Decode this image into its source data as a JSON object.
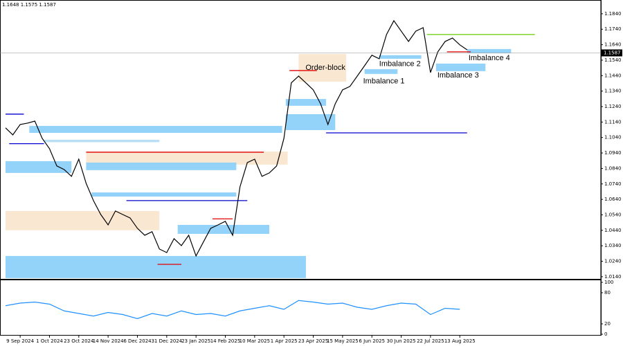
{
  "chart_data": {
    "type": "line",
    "header": "1.1648 1.1575 1.1587",
    "x": [
      0,
      4,
      8,
      12,
      16,
      20,
      24,
      28,
      32,
      36,
      40,
      44,
      48,
      52,
      56,
      60,
      64,
      68,
      72,
      76,
      80,
      84,
      88,
      92,
      96,
      100,
      104,
      108,
      112,
      116,
      120,
      124,
      128,
      132,
      136,
      140,
      144,
      148,
      152,
      156,
      160,
      164,
      168,
      172,
      176,
      180,
      184,
      188,
      192,
      196,
      200,
      204,
      208,
      212,
      216,
      220,
      224,
      228,
      232,
      236,
      240,
      244,
      248,
      252
    ],
    "series": [
      {
        "color": "#000000",
        "values": [
          1.1102,
          1.1057,
          1.1124,
          1.1133,
          1.1146,
          1.1035,
          1.0968,
          1.0856,
          1.0833,
          1.0789,
          1.09,
          1.0744,
          1.0632,
          1.0542,
          1.0475,
          1.0565,
          1.0542,
          1.052,
          1.0453,
          1.0408,
          1.0431,
          1.0319,
          1.0296,
          1.0386,
          1.0341,
          1.0408,
          1.0274,
          1.0364,
          1.0453,
          1.0475,
          1.0498,
          1.0408,
          1.0721,
          1.0878,
          1.09,
          1.0789,
          1.0811,
          1.0856,
          1.1035,
          1.1393,
          1.1437,
          1.1393,
          1.1348,
          1.1258,
          1.1124,
          1.1258,
          1.1348,
          1.137,
          1.1437,
          1.1504,
          1.1572,
          1.1549,
          1.1706,
          1.1795,
          1.1728,
          1.1661,
          1.1728,
          1.175,
          1.146,
          1.1594,
          1.1661,
          1.1683,
          1.1639,
          1.1607
        ]
      }
    ],
    "xlim": [
      -1.5,
      325
    ],
    "xticks": [
      {
        "value": 8,
        "label": "9 Sep 2024"
      },
      {
        "value": 24,
        "label": "1 Oct 2024"
      },
      {
        "value": 40,
        "label": "23 Oct 2024"
      },
      {
        "value": 56,
        "label": "14 Nov 2024"
      },
      {
        "value": 72,
        "label": "6 Dec 2024"
      },
      {
        "value": 88,
        "label": "31 Dec 2024"
      },
      {
        "value": 104,
        "label": "23 Jan 2025"
      },
      {
        "value": 120,
        "label": "14 Feb 2025"
      },
      {
        "value": 136,
        "label": "10 Mar 2025"
      },
      {
        "value": 152,
        "label": "1 Apr 2025"
      },
      {
        "value": 168,
        "label": "23 Apr 2025"
      },
      {
        "value": 184,
        "label": "15 May 2025"
      },
      {
        "value": 200,
        "label": "6 Jun 2025"
      },
      {
        "value": 216,
        "label": "30 Jun 2025"
      },
      {
        "value": 232,
        "label": "22 Jul 2025"
      },
      {
        "value": 248,
        "label": "13 Aug 2025"
      }
    ],
    "ylim": [
      1.0126,
      1.1929
    ],
    "yticks": [
      {
        "value": 1.184,
        "label": "1.1840"
      },
      {
        "value": 1.174,
        "label": "1.1740"
      },
      {
        "value": 1.164,
        "label": "1.1640"
      },
      {
        "value": 1.154,
        "label": "1.1540"
      },
      {
        "value": 1.144,
        "label": "1.1440"
      },
      {
        "value": 1.134,
        "label": "1.1340"
      },
      {
        "value": 1.124,
        "label": "1.1240"
      },
      {
        "value": 1.114,
        "label": "1.1140"
      },
      {
        "value": 1.104,
        "label": "1.1040"
      },
      {
        "value": 1.094,
        "label": "1.0940"
      },
      {
        "value": 1.084,
        "label": "1.0840"
      },
      {
        "value": 1.074,
        "label": "1.0740"
      },
      {
        "value": 1.064,
        "label": "1.0640"
      },
      {
        "value": 1.054,
        "label": "1.0540"
      },
      {
        "value": 1.044,
        "label": "1.0440"
      },
      {
        "value": 1.034,
        "label": "1.0340"
      },
      {
        "value": 1.024,
        "label": "1.0240"
      },
      {
        "value": 1.014,
        "label": "1.0140"
      }
    ],
    "current_price": {
      "value": 1.1587,
      "label": "1.1587"
    },
    "zones": [
      {
        "x": [
          0,
          164
        ],
        "y": [
          1.0131,
          1.0274
        ],
        "color": "#87cefa"
      },
      {
        "x": [
          0,
          84
        ],
        "y": [
          1.044,
          1.0565
        ],
        "color": "#f8e4cc"
      },
      {
        "x": [
          44,
          154
        ],
        "y": [
          1.0865,
          1.0949
        ],
        "color": "#f8e4cc"
      },
      {
        "x": [
          0,
          36
        ],
        "y": [
          1.0811,
          1.0887
        ],
        "color": "#87cefa"
      },
      {
        "x": [
          44,
          126
        ],
        "y": [
          1.0829,
          1.0878
        ],
        "color": "#87cefa"
      },
      {
        "x": [
          13,
          151
        ],
        "y": [
          1.107,
          1.1115
        ],
        "color": "#87cefa"
      },
      {
        "x": [
          21,
          84
        ],
        "y": [
          1.101,
          1.1025
        ],
        "color": "#b0dcf5"
      },
      {
        "x": [
          47,
          126
        ],
        "y": [
          1.0658,
          1.0685
        ],
        "color": "#87cefa"
      },
      {
        "x": [
          94,
          144
        ],
        "y": [
          1.0417,
          1.0475
        ],
        "color": "#87cefa"
      },
      {
        "x": [
          153,
          180
        ],
        "y": [
          1.1088,
          1.1191
        ],
        "color": "#87cefa"
      },
      {
        "x": [
          153,
          175
        ],
        "y": [
          1.1245,
          1.1289
        ],
        "color": "#87cefa"
      },
      {
        "x": [
          160,
          186
        ],
        "y": [
          1.1401,
          1.158
        ],
        "color": "#f8e4cc",
        "label": "Order-block"
      },
      {
        "x": [
          204,
          227
        ],
        "y": [
          1.1549,
          1.1572
        ],
        "color": "#87cefa",
        "label": "Imbalance 2"
      },
      {
        "x": [
          196,
          214
        ],
        "y": [
          1.1451,
          1.1482
        ],
        "color": "#87cefa",
        "label": "Imbalance 1"
      },
      {
        "x": [
          235,
          262
        ],
        "y": [
          1.1469,
          1.1518
        ],
        "color": "#87cefa",
        "label": "Imbalance 3"
      },
      {
        "x": [
          252,
          276
        ],
        "y": [
          1.1585,
          1.1612
        ],
        "color": "#87cefa",
        "label": "Imbalance 4"
      }
    ],
    "levels": [
      {
        "x": [
          0,
          10
        ],
        "y": 1.1191,
        "color": "#0000cd"
      },
      {
        "x": [
          2,
          21
        ],
        "y": 1.1,
        "color": "#0000cd"
      },
      {
        "x": [
          175,
          252
        ],
        "y": 1.107,
        "color": "#0000cd"
      },
      {
        "x": [
          155,
          170
        ],
        "y": 1.1473,
        "color": "#e00000"
      },
      {
        "x": [
          66,
          132
        ],
        "y": 1.0632,
        "color": "#0000cd"
      },
      {
        "x": [
          44,
          141
        ],
        "y": 1.0945,
        "color": "#e00000"
      },
      {
        "x": [
          83,
          96
        ],
        "y": 1.022,
        "color": "#e00000"
      },
      {
        "x": [
          113,
          124
        ],
        "y": 1.0514,
        "color": "#e00000"
      },
      {
        "x": [
          230,
          289
        ],
        "y": 1.1706,
        "color": "#66cc00"
      },
      {
        "x": [
          241,
          254
        ],
        "y": 1.1594,
        "color": "#e00000"
      }
    ],
    "oscillator": {
      "color": "#1e90ff",
      "x": [
        0,
        8,
        16,
        24,
        32,
        40,
        48,
        56,
        64,
        72,
        80,
        88,
        96,
        104,
        112,
        120,
        128,
        136,
        144,
        152,
        160,
        168,
        176,
        184,
        192,
        200,
        208,
        216,
        224,
        232,
        240,
        248
      ],
      "values": [
        55,
        60,
        62,
        58,
        45,
        40,
        35,
        42,
        38,
        30,
        40,
        35,
        45,
        38,
        40,
        35,
        45,
        50,
        55,
        48,
        65,
        62,
        58,
        60,
        52,
        48,
        55,
        60,
        58,
        38,
        50,
        48
      ],
      "ylim": [
        0,
        100
      ],
      "yticks": [
        100,
        80,
        20,
        0
      ]
    }
  }
}
